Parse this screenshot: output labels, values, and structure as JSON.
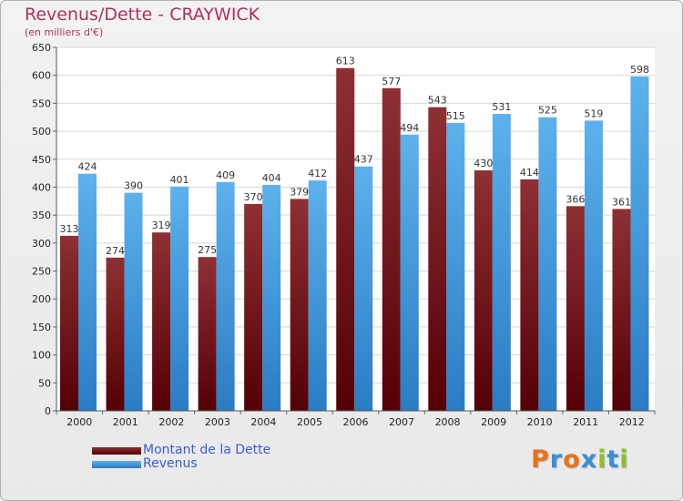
{
  "chart_data": {
    "type": "bar",
    "title": "Revenus/Dette - CRAYWICK",
    "subtitle": "(en milliers d'€)",
    "categories": [
      "2000",
      "2001",
      "2002",
      "2003",
      "2004",
      "2005",
      "2006",
      "2007",
      "2008",
      "2009",
      "2010",
      "2011",
      "2012"
    ],
    "series": [
      {
        "name": "Montant de la Dette",
        "color": "#7a1a1e",
        "values": [
          313,
          274,
          319,
          275,
          370,
          379,
          613,
          577,
          543,
          430,
          414,
          366,
          361
        ]
      },
      {
        "name": "Revenus",
        "color": "#3d9be0",
        "values": [
          424,
          390,
          401,
          409,
          404,
          412,
          437,
          494,
          515,
          531,
          525,
          519,
          598
        ]
      }
    ],
    "ylim": [
      0,
      650
    ],
    "yticks": [
      0,
      50,
      100,
      150,
      200,
      250,
      300,
      350,
      400,
      450,
      500,
      550,
      600,
      650
    ],
    "grid": true,
    "legend": "bottom-left"
  },
  "logo": {
    "text": "Proxiti",
    "colors": [
      "#e8731a",
      "#3a8fd8",
      "#e8731a",
      "#3a8fd8",
      "#8cbf2a",
      "#3a8fd8",
      "#8cbf2a"
    ]
  }
}
